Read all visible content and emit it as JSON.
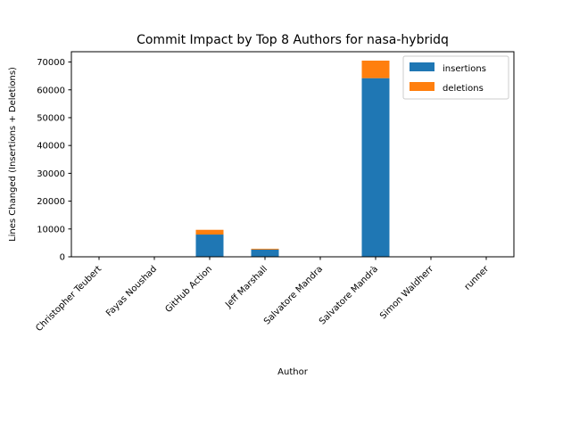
{
  "chart_data": {
    "type": "bar",
    "stacked": true,
    "title": "Commit Impact by Top 8 Authors for nasa-hybridq",
    "xlabel": "Author",
    "ylabel": "Lines Changed (Insertions + Deletions)",
    "categories": [
      "Christopher Teubert",
      "Fayas Noushad",
      "GitHub Action",
      "Jeff Marshall",
      "Salvatore Mandra",
      "Salvatore Mandrà",
      "Simon Waldherr",
      "runner"
    ],
    "series": [
      {
        "name": "insertions",
        "color": "#1f77b4",
        "values": [
          40,
          5,
          8000,
          2600,
          15,
          64200,
          10,
          5
        ]
      },
      {
        "name": "deletions",
        "color": "#ff7f0e",
        "values": [
          20,
          2,
          1700,
          300,
          5,
          6300,
          5,
          5
        ]
      }
    ],
    "ylim": [
      0,
      73700
    ],
    "yticks": [
      0,
      10000,
      20000,
      30000,
      40000,
      50000,
      60000,
      70000
    ],
    "legend_position": "top-right",
    "grid": false
  }
}
